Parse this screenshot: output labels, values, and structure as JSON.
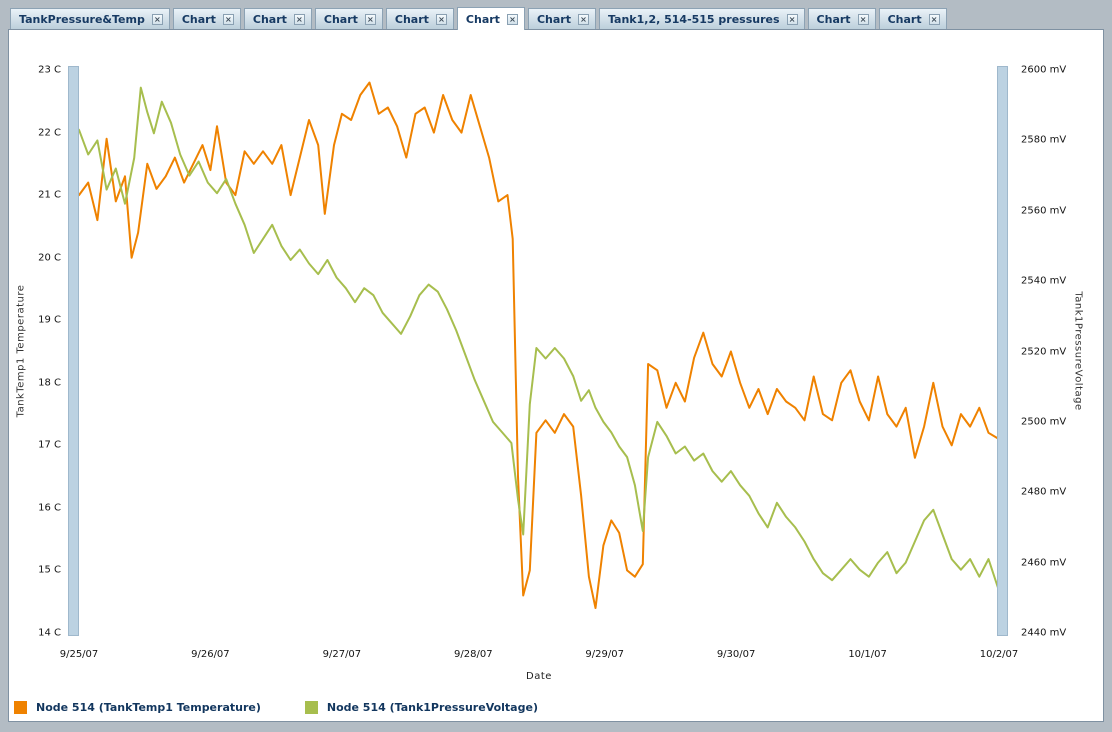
{
  "icons": {
    "tab_close": "×"
  },
  "colors": {
    "window_background": "#b3bcc4",
    "panel_background": "#ffffff",
    "temperature_series": "#EF8200",
    "pressure_series": "#A7BE4E",
    "tab_text": "#173A63",
    "range_slider": "#BCD2E2"
  },
  "tab_bar": {
    "tabs": [
      {
        "label": "TankPressure&Temp",
        "active": false
      },
      {
        "label": "Chart",
        "active": false
      },
      {
        "label": "Chart",
        "active": false
      },
      {
        "label": "Chart",
        "active": false
      },
      {
        "label": "Chart",
        "active": false
      },
      {
        "label": "Chart",
        "active": true
      },
      {
        "label": "Chart",
        "active": false
      },
      {
        "label": "Tank1,2, 514-515 pressures",
        "active": false
      },
      {
        "label": "Chart",
        "active": false
      },
      {
        "label": "Chart",
        "active": false
      }
    ]
  },
  "legend": [
    {
      "label": "Node 514 (TankTemp1 Temperature)",
      "color": "#EF8200"
    },
    {
      "label": "Node 514 (Tank1PressureVoltage)",
      "color": "#A7BE4E"
    }
  ],
  "chart_data": {
    "type": "line",
    "title": "",
    "xlabel": "Date",
    "x_unit": "days since 9/25/07",
    "x_range_days": [
      0,
      7
    ],
    "x_ticks": [
      "9/25/07",
      "9/26/07",
      "9/27/07",
      "9/28/07",
      "9/29/07",
      "9/30/07",
      "10/1/07",
      "10/2/07"
    ],
    "grid": false,
    "legend_position": "bottom-left",
    "left_axis": {
      "label": "TankTemp1 Temperature",
      "unit": "C",
      "min": 14,
      "max": 23,
      "tick_step": 1
    },
    "right_axis": {
      "label": "Tank1PressureVoltage",
      "unit": "mV",
      "min": 2440,
      "max": 2600,
      "tick_step": 20
    },
    "series": [
      {
        "name": "Node 514 (TankTemp1 Temperature)",
        "data_name": "temperature-line",
        "axis": "left",
        "color": "#EF8200",
        "x": [
          0,
          0.07,
          0.14,
          0.21,
          0.28,
          0.35,
          0.4,
          0.45,
          0.52,
          0.59,
          0.66,
          0.73,
          0.8,
          0.87,
          0.94,
          1,
          1.05,
          1.12,
          1.19,
          1.26,
          1.33,
          1.4,
          1.47,
          1.54,
          1.61,
          1.68,
          1.75,
          1.82,
          1.87,
          1.94,
          2,
          2.07,
          2.14,
          2.21,
          2.28,
          2.35,
          2.42,
          2.49,
          2.56,
          2.63,
          2.7,
          2.77,
          2.84,
          2.91,
          2.98,
          3.05,
          3.12,
          3.19,
          3.26,
          3.3,
          3.34,
          3.38,
          3.43,
          3.48,
          3.55,
          3.62,
          3.69,
          3.76,
          3.82,
          3.88,
          3.93,
          3.99,
          4.05,
          4.11,
          4.17,
          4.23,
          4.29,
          4.33,
          4.4,
          4.47,
          4.54,
          4.61,
          4.68,
          4.75,
          4.82,
          4.89,
          4.96,
          5.03,
          5.1,
          5.17,
          5.24,
          5.31,
          5.38,
          5.45,
          5.52,
          5.59,
          5.66,
          5.73,
          5.8,
          5.87,
          5.94,
          6.01,
          6.08,
          6.15,
          6.22,
          6.29,
          6.36,
          6.43,
          6.5,
          6.57,
          6.64,
          6.71,
          6.78,
          6.85,
          6.92,
          7
        ],
        "y": [
          21,
          21.2,
          20.6,
          21.9,
          20.9,
          21.3,
          20,
          20.4,
          21.5,
          21.1,
          21.3,
          21.6,
          21.2,
          21.5,
          21.8,
          21.4,
          22.1,
          21.2,
          21,
          21.7,
          21.5,
          21.7,
          21.5,
          21.8,
          21,
          21.6,
          22.2,
          21.8,
          20.7,
          21.8,
          22.3,
          22.2,
          22.6,
          22.8,
          22.3,
          22.4,
          22.1,
          21.6,
          22.3,
          22.4,
          22,
          22.6,
          22.2,
          22,
          22.6,
          22.1,
          21.6,
          20.9,
          21,
          20.3,
          16.5,
          14.6,
          15,
          17.2,
          17.4,
          17.2,
          17.5,
          17.3,
          16.2,
          14.9,
          14.4,
          15.4,
          15.8,
          15.6,
          15,
          14.9,
          15.1,
          18.3,
          18.2,
          17.6,
          18,
          17.7,
          18.4,
          18.8,
          18.3,
          18.1,
          18.5,
          18,
          17.6,
          17.9,
          17.5,
          17.9,
          17.7,
          17.6,
          17.4,
          18.1,
          17.5,
          17.4,
          18,
          18.2,
          17.7,
          17.4,
          18.1,
          17.5,
          17.3,
          17.6,
          16.8,
          17.3,
          18,
          17.3,
          17,
          17.5,
          17.3,
          17.6,
          17.2,
          17.1
        ]
      },
      {
        "name": "Node 514 (Tank1PressureVoltage)",
        "data_name": "pressure-line",
        "axis": "right",
        "color": "#A7BE4E",
        "x": [
          0,
          0.07,
          0.14,
          0.21,
          0.28,
          0.35,
          0.42,
          0.47,
          0.52,
          0.57,
          0.63,
          0.7,
          0.77,
          0.84,
          0.91,
          0.98,
          1.05,
          1.12,
          1.19,
          1.26,
          1.33,
          1.4,
          1.47,
          1.54,
          1.61,
          1.68,
          1.75,
          1.82,
          1.89,
          1.96,
          2.03,
          2.1,
          2.17,
          2.24,
          2.31,
          2.38,
          2.45,
          2.52,
          2.59,
          2.66,
          2.73,
          2.8,
          2.87,
          2.94,
          3.01,
          3.08,
          3.15,
          3.22,
          3.29,
          3.34,
          3.38,
          3.43,
          3.48,
          3.55,
          3.62,
          3.69,
          3.76,
          3.82,
          3.88,
          3.93,
          3.99,
          4.05,
          4.11,
          4.17,
          4.23,
          4.29,
          4.33,
          4.4,
          4.47,
          4.54,
          4.61,
          4.68,
          4.75,
          4.82,
          4.89,
          4.96,
          5.03,
          5.1,
          5.17,
          5.24,
          5.31,
          5.38,
          5.45,
          5.52,
          5.59,
          5.66,
          5.73,
          5.8,
          5.87,
          5.94,
          6.01,
          6.08,
          6.15,
          6.22,
          6.29,
          6.36,
          6.43,
          6.5,
          6.57,
          6.64,
          6.71,
          6.78,
          6.85,
          6.92,
          7
        ],
        "y": [
          2583,
          2576,
          2580,
          2566,
          2572,
          2562,
          2575,
          2595,
          2588,
          2582,
          2591,
          2585,
          2576,
          2570,
          2574,
          2568,
          2565,
          2569,
          2562,
          2556,
          2548,
          2552,
          2556,
          2550,
          2546,
          2549,
          2545,
          2542,
          2546,
          2541,
          2538,
          2534,
          2538,
          2536,
          2531,
          2528,
          2525,
          2530,
          2536,
          2539,
          2537,
          2532,
          2526,
          2519,
          2512,
          2506,
          2500,
          2497,
          2494,
          2478,
          2468,
          2505,
          2521,
          2518,
          2521,
          2518,
          2513,
          2506,
          2509,
          2504,
          2500,
          2497,
          2493,
          2490,
          2482,
          2469,
          2490,
          2500,
          2496,
          2491,
          2493,
          2489,
          2491,
          2486,
          2483,
          2486,
          2482,
          2479,
          2474,
          2470,
          2477,
          2473,
          2470,
          2466,
          2461,
          2457,
          2455,
          2458,
          2461,
          2458,
          2456,
          2460,
          2463,
          2457,
          2460,
          2466,
          2472,
          2475,
          2468,
          2461,
          2458,
          2461,
          2456,
          2461,
          2452
        ]
      }
    ]
  }
}
